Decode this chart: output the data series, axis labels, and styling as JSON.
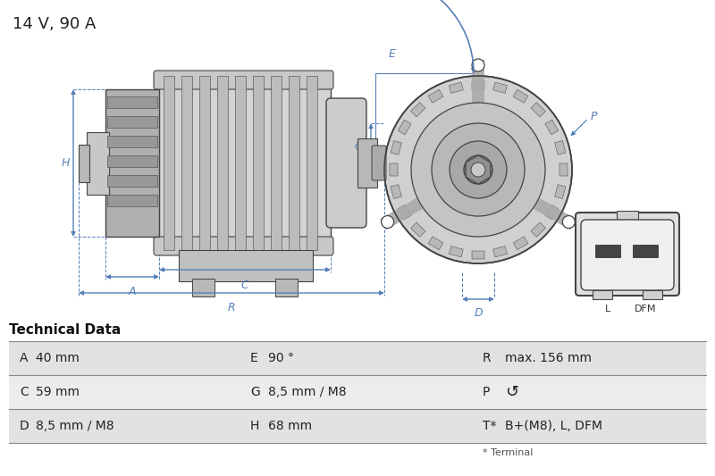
{
  "title": "14 V, 90 A",
  "tech_data_title": "Technical Data",
  "bg_color": "#ffffff",
  "table_row_odd": "#e2e2e2",
  "table_row_even": "#ececec",
  "dim_color": "#5580b8",
  "line_color": "#444444",
  "rows": [
    [
      "A",
      "40 mm",
      "E",
      "90 °",
      "R",
      "max. 156 mm"
    ],
    [
      "C",
      "59 mm",
      "G",
      "8,5 mm / M8",
      "P",
      "↺"
    ],
    [
      "D",
      "8,5 mm / M8",
      "H",
      "68 mm",
      "T*",
      "B+(M8), L, DFM"
    ]
  ],
  "footnote": "* Terminal"
}
